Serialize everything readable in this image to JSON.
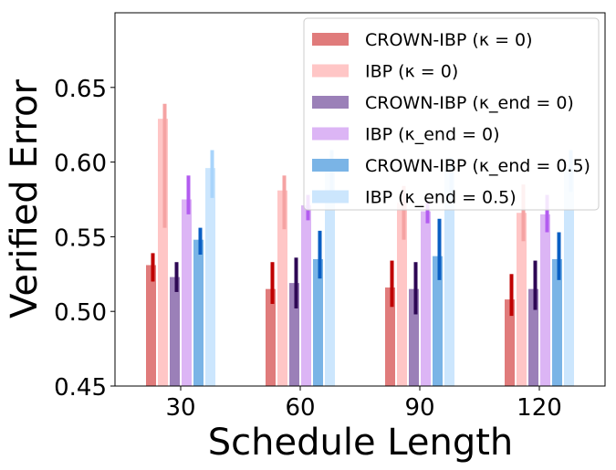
{
  "chart_data": {
    "type": "bar",
    "xlabel": "Schedule Length",
    "ylabel": "Verified Error",
    "ylim": [
      0.45,
      0.7
    ],
    "yticks": [
      0.45,
      0.5,
      0.55,
      0.6,
      0.65
    ],
    "ytick_labels": [
      "0.45",
      "0.50",
      "0.55",
      "0.60",
      "0.65"
    ],
    "categories": [
      "30",
      "60",
      "90",
      "120"
    ],
    "legend_position": "top-right",
    "series": [
      {
        "name": "CROWN-IBP",
        "param": "κ = 0",
        "color": "#e07b7b",
        "err_color": "#c00000",
        "values": [
          0.531,
          0.515,
          0.516,
          0.508
        ],
        "err_low": [
          0.52,
          0.505,
          0.503,
          0.497
        ],
        "err_high": [
          0.539,
          0.533,
          0.534,
          0.525
        ]
      },
      {
        "name": "IBP",
        "param": "κ = 0",
        "color": "#ffc6c6",
        "err_color": "#f5a3a3",
        "values": [
          0.629,
          0.581,
          0.573,
          0.566
        ],
        "err_low": [
          0.556,
          0.555,
          0.548,
          0.547
        ],
        "err_high": [
          0.639,
          0.591,
          0.584,
          0.585
        ]
      },
      {
        "name": "CROWN-IBP",
        "param": "κ_end = 0",
        "color": "#9b80b8",
        "err_color": "#2e0854",
        "values": [
          0.523,
          0.519,
          0.515,
          0.515
        ],
        "err_low": [
          0.513,
          0.502,
          0.498,
          0.501
        ],
        "err_high": [
          0.533,
          0.536,
          0.533,
          0.534
        ]
      },
      {
        "name": "IBP",
        "param": "κ_end = 0",
        "color": "#dcb5f5",
        "err_color": "#b35cf0",
        "values": [
          0.575,
          0.571,
          0.567,
          0.565
        ],
        "err_low": [
          0.565,
          0.561,
          0.559,
          0.553
        ],
        "err_high": [
          0.591,
          0.578,
          0.573,
          0.578
        ]
      },
      {
        "name": "CROWN-IBP",
        "param": "κ_end = 0.5",
        "color": "#7ab4e6",
        "err_color": "#0a5fc4",
        "values": [
          0.548,
          0.535,
          0.537,
          0.535
        ],
        "err_low": [
          0.538,
          0.522,
          0.521,
          0.521
        ],
        "err_high": [
          0.556,
          0.554,
          0.562,
          0.553
        ]
      },
      {
        "name": "IBP",
        "param": "κ_end = 0.5",
        "color": "#cce6fd",
        "err_color": "#a8d4fb",
        "values": [
          0.596,
          0.595,
          0.595,
          0.596
        ],
        "err_low": [
          0.576,
          0.58,
          0.575,
          0.58
        ],
        "err_high": [
          0.608,
          0.608,
          0.603,
          0.608
        ]
      }
    ]
  }
}
